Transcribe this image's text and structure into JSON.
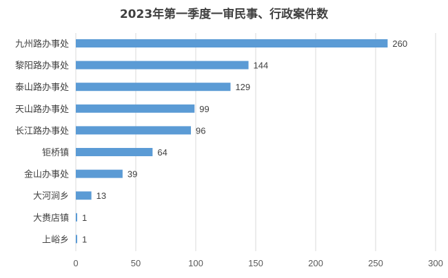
{
  "chart_data": {
    "type": "bar",
    "orientation": "horizontal",
    "title": "2023年第一季度一审民事、行政案件数",
    "categories": [
      "九州路办事处",
      "黎阳路办事处",
      "泰山路办事处",
      "天山路办事处",
      "长江路办事处",
      "钜桥镇",
      "金山办事处",
      "大河涧乡",
      "大赉店镇",
      "上峪乡"
    ],
    "values": [
      260,
      144,
      129,
      99,
      96,
      64,
      39,
      13,
      1,
      1
    ],
    "xlim": [
      0,
      300
    ],
    "xticks": [
      0,
      50,
      100,
      150,
      200,
      250,
      300
    ],
    "xlabel": "",
    "ylabel": "",
    "grid": true,
    "data_labels": true,
    "legend": "none",
    "colors": {
      "bar": "#5b9bd5",
      "grid": "#d9d9d9",
      "text": "#404040"
    }
  }
}
